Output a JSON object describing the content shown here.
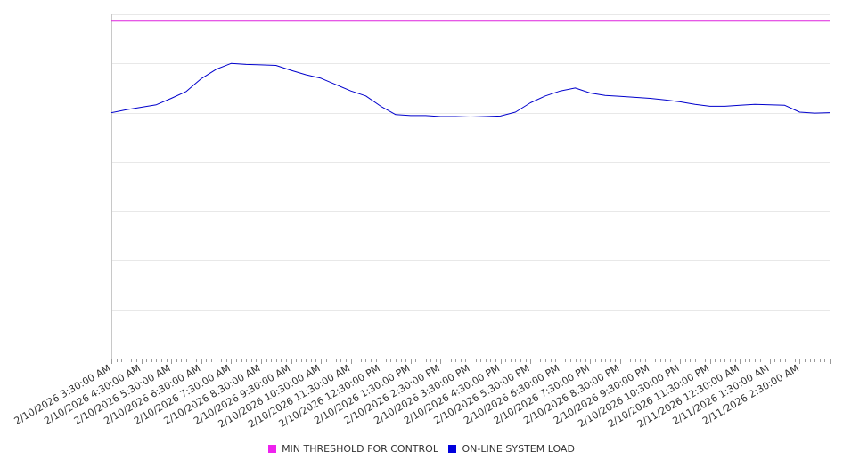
{
  "chart_data": {
    "type": "line",
    "x_tick_labels": [
      "2/10/2026 3:30:00 AM",
      "2/10/2026 4:30:00 AM",
      "2/10/2026 5:30:00 AM",
      "2/10/2026 6:30:00 AM",
      "2/10/2026 7:30:00 AM",
      "2/10/2026 8:30:00 AM",
      "2/10/2026 9:30:00 AM",
      "2/10/2026 10:30:00 AM",
      "2/10/2026 11:30:00 AM",
      "2/10/2026 12:30:00 PM",
      "2/10/2026 1:30:00 PM",
      "2/10/2026 2:30:00 PM",
      "2/10/2026 3:30:00 PM",
      "2/10/2026 4:30:00 PM",
      "2/10/2026 5:30:00 PM",
      "2/10/2026 6:30:00 PM",
      "2/10/2026 7:30:00 PM",
      "2/10/2026 8:30:00 PM",
      "2/10/2026 9:30:00 PM",
      "2/10/2026 10:30:00 PM",
      "2/10/2026 11:30:00 PM",
      "2/11/2026 12:30:00 AM",
      "2/11/2026 1:30:00 AM",
      "2/11/2026 2:30:00 AM"
    ],
    "x_range": [
      "2/10/2026 3:30:00 AM",
      "2/11/2026 3:30:00 AM"
    ],
    "y_range": [
      0,
      7
    ],
    "y_gridlines": [
      1,
      2,
      3,
      4,
      5,
      6,
      7
    ],
    "y_tick_labels_shown": false,
    "grid": true,
    "legend_position": "bottom",
    "series": [
      {
        "name": "MIN THRESHOLD FOR CONTROL",
        "color": "#dd22dd",
        "x": [
          "2/10/2026 3:30:00 AM",
          "2/11/2026 3:30:00 AM"
        ],
        "y": [
          6.86,
          6.86
        ]
      },
      {
        "name": "ON-LINE SYSTEM LOAD",
        "color": "#0000cc",
        "x": [
          "2/10/2026 3:30:00 AM",
          "2/10/2026 4:00:00 AM",
          "2/10/2026 4:30:00 AM",
          "2/10/2026 5:00:00 AM",
          "2/10/2026 5:30:00 AM",
          "2/10/2026 6:00:00 AM",
          "2/10/2026 6:30:00 AM",
          "2/10/2026 7:00:00 AM",
          "2/10/2026 7:30:00 AM",
          "2/10/2026 8:00:00 AM",
          "2/10/2026 8:30:00 AM",
          "2/10/2026 9:00:00 AM",
          "2/10/2026 9:30:00 AM",
          "2/10/2026 10:00:00 AM",
          "2/10/2026 10:30:00 AM",
          "2/10/2026 11:00:00 AM",
          "2/10/2026 11:30:00 AM",
          "2/10/2026 12:00:00 PM",
          "2/10/2026 12:30:00 PM",
          "2/10/2026 1:00:00 PM",
          "2/10/2026 1:30:00 PM",
          "2/10/2026 2:00:00 PM",
          "2/10/2026 2:30:00 PM",
          "2/10/2026 3:00:00 PM",
          "2/10/2026 3:30:00 PM",
          "2/10/2026 4:00:00 PM",
          "2/10/2026 4:30:00 PM",
          "2/10/2026 5:00:00 PM",
          "2/10/2026 5:30:00 PM",
          "2/10/2026 6:00:00 PM",
          "2/10/2026 6:30:00 PM",
          "2/10/2026 7:00:00 PM",
          "2/10/2026 7:30:00 PM",
          "2/10/2026 8:00:00 PM",
          "2/10/2026 8:30:00 PM",
          "2/10/2026 9:00:00 PM",
          "2/10/2026 9:30:00 PM",
          "2/10/2026 10:00:00 PM",
          "2/10/2026 10:30:00 PM",
          "2/10/2026 11:00:00 PM",
          "2/10/2026 11:30:00 PM",
          "2/11/2026 12:00:00 AM",
          "2/11/2026 12:30:00 AM",
          "2/11/2026 1:00:00 AM",
          "2/11/2026 1:30:00 AM",
          "2/11/2026 2:00:00 AM",
          "2/11/2026 2:30:00 AM",
          "2/11/2026 3:00:00 AM",
          "2/11/2026 3:30:00 AM"
        ],
        "y": [
          5.0,
          5.06,
          5.11,
          5.16,
          5.29,
          5.43,
          5.69,
          5.88,
          6.0,
          5.98,
          5.97,
          5.96,
          5.86,
          5.77,
          5.7,
          5.57,
          5.44,
          5.34,
          5.13,
          4.96,
          4.94,
          4.94,
          4.92,
          4.92,
          4.91,
          4.92,
          4.93,
          5.01,
          5.2,
          5.34,
          5.44,
          5.5,
          5.4,
          5.35,
          5.33,
          5.31,
          5.29,
          5.26,
          5.22,
          5.17,
          5.13,
          5.13,
          5.15,
          5.17,
          5.16,
          5.15,
          5.01,
          4.99,
          5.0
        ]
      }
    ]
  }
}
